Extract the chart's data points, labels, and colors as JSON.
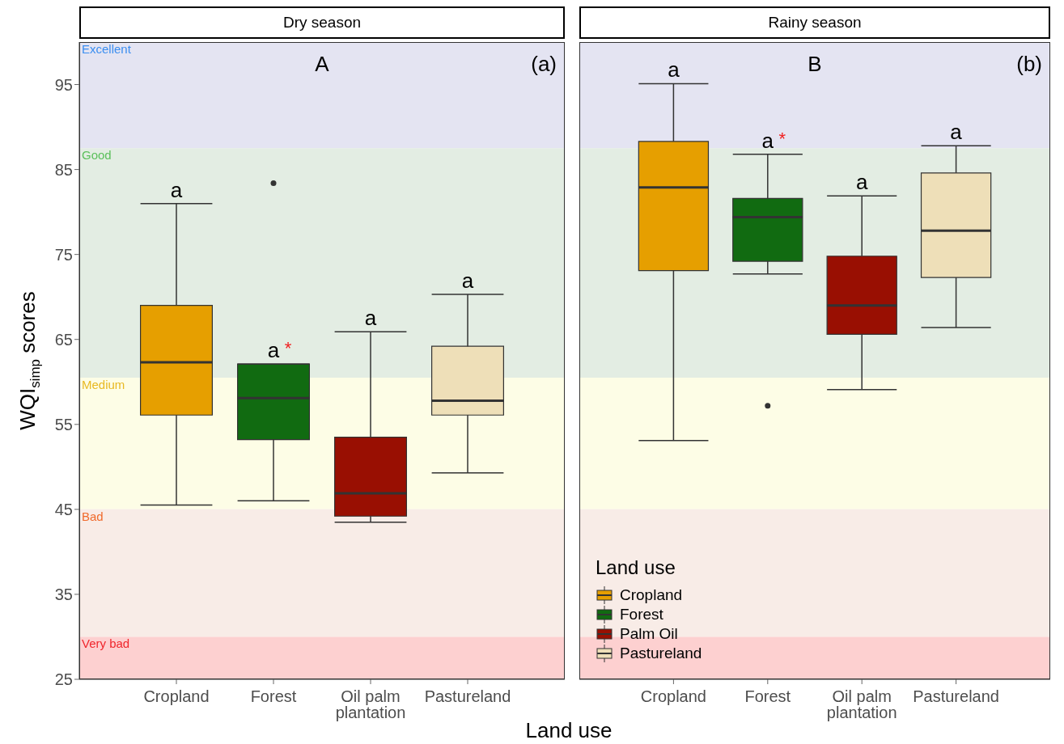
{
  "chart_data": [
    {
      "type": "box",
      "title": "Dry season",
      "xlabel": "Land use",
      "ylabel": "WQI$_{simp}$ scores",
      "categories": [
        "Cropland",
        "Forest",
        "Oil palm plantation",
        "Pastureland"
      ],
      "ylim": [
        25,
        100
      ],
      "yticks": [
        25,
        35,
        45,
        55,
        65,
        75,
        85,
        95
      ],
      "grid": false,
      "legend": false,
      "series": [
        {
          "color": "#e69f00",
          "boxes": [
            {
              "low": 45.5,
              "q1": 56.1,
              "median": 62.3,
              "q3": 69.0,
              "high": 81.0
            },
            null,
            null,
            null
          ]
        },
        {
          "color": "#116b11",
          "boxes": [
            null,
            {
              "low": 46.0,
              "q1": 53.2,
              "median": 58.1,
              "q3": 62.1,
              "high": 62.1,
              "outliers": [
                83.4
              ]
            },
            null,
            null
          ]
        },
        {
          "color": "#990f02",
          "boxes": [
            null,
            null,
            {
              "low": 43.5,
              "q1": 44.2,
              "median": 46.9,
              "q3": 53.5,
              "high": 65.9
            },
            null
          ]
        },
        {
          "color": "#eedfb8",
          "boxes": [
            null,
            null,
            null,
            {
              "low": 49.3,
              "q1": 56.1,
              "median": 57.8,
              "q3": 64.2,
              "high": 70.3
            }
          ]
        }
      ],
      "bands": [
        {
          "axis": "y",
          "from": 87.5,
          "to": 100,
          "label": "Excellent",
          "color": "#e4e4f2"
        },
        {
          "axis": "y",
          "from": 60.5,
          "to": 87.5,
          "label": "Good",
          "color": "#e3ede3"
        },
        {
          "axis": "y",
          "from": 45,
          "to": 60.5,
          "label": "Medium",
          "color": "#fdfde6"
        },
        {
          "axis": "y",
          "from": 30,
          "to": 45,
          "label": "Bad",
          "color": "#f8ece7"
        },
        {
          "axis": "y",
          "from": 25,
          "to": 30,
          "label": "Very bad",
          "color": "#fdd0d0"
        }
      ],
      "annotations": [
        "A",
        "(a)",
        "a",
        "a",
        "a",
        "a",
        "*"
      ]
    },
    {
      "type": "box",
      "title": "Rainy season",
      "categories": [
        "Cropland",
        "Forest",
        "Oil palm plantation",
        "Pastureland"
      ],
      "ylim": [
        25,
        100
      ],
      "yticks": [
        25,
        35,
        45,
        55,
        65,
        75,
        85,
        95
      ],
      "tick_labels": "x",
      "grid": false,
      "legend": "bottom left",
      "legend_title": "Land use",
      "series": [
        {
          "name": "Cropland",
          "color": "#e69f00",
          "boxes": [
            {
              "low": 53.1,
              "q1": 73.1,
              "median": 82.9,
              "q3": 88.3,
              "high": 95.1
            },
            null,
            null,
            null
          ]
        },
        {
          "name": "Forest",
          "color": "#116b11",
          "boxes": [
            null,
            {
              "low": 72.7,
              "q1": 74.2,
              "median": 79.4,
              "q3": 81.6,
              "high": 86.8,
              "outliers": [
                57.2
              ]
            },
            null,
            null
          ]
        },
        {
          "name": "Palm Oil",
          "color": "#990f02",
          "boxes": [
            null,
            null,
            {
              "low": 59.1,
              "q1": 65.6,
              "median": 69.0,
              "q3": 74.8,
              "high": 81.9
            },
            null
          ]
        },
        {
          "name": "Pastureland",
          "color": "#eedfb8",
          "boxes": [
            null,
            null,
            null,
            {
              "low": 66.4,
              "q1": 72.3,
              "median": 77.8,
              "q3": 84.6,
              "high": 87.8
            }
          ]
        }
      ],
      "bands": [
        {
          "axis": "y",
          "from": 87.5,
          "to": 100,
          "color": "#e4e4f2"
        },
        {
          "axis": "y",
          "from": 60.5,
          "to": 87.5,
          "color": "#e3ede3"
        },
        {
          "axis": "y",
          "from": 45,
          "to": 60.5,
          "color": "#fdfde6"
        },
        {
          "axis": "y",
          "from": 30,
          "to": 45,
          "color": "#f8ece7"
        },
        {
          "axis": "y",
          "from": 25,
          "to": 30,
          "color": "#fdd0d0"
        }
      ],
      "annotations": [
        "B",
        "(b)",
        "a",
        "a",
        "a",
        "a",
        "*"
      ]
    }
  ]
}
